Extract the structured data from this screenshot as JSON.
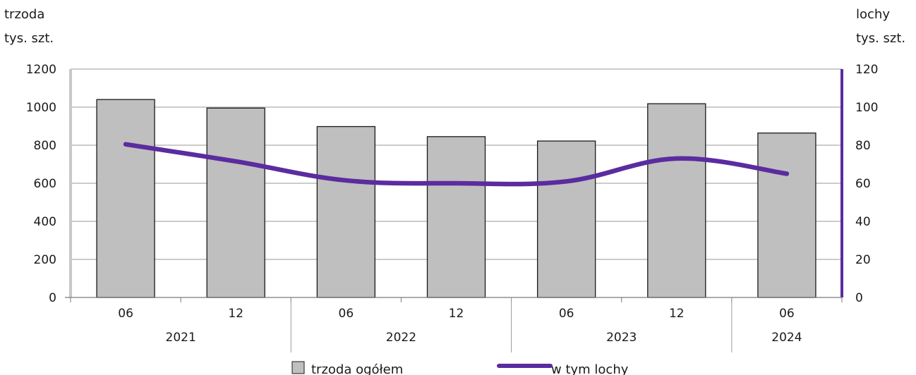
{
  "chart_data": {
    "type": "bar",
    "left_axis_label": [
      "trzoda",
      "tys. szt."
    ],
    "right_axis_label": [
      "lochy",
      "tys. szt."
    ],
    "categories": [
      "06",
      "12",
      "06",
      "12",
      "06",
      "12",
      "06"
    ],
    "years": [
      {
        "label": "2021",
        "span": 2
      },
      {
        "label": "2022",
        "span": 2
      },
      {
        "label": "2023",
        "span": 2
      },
      {
        "label": "2024",
        "span": 1
      }
    ],
    "left_ylim": [
      0,
      1200
    ],
    "left_ticks": [
      0,
      200,
      400,
      600,
      800,
      1000,
      1200
    ],
    "right_ylim": [
      0,
      120
    ],
    "right_ticks": [
      0,
      20,
      40,
      60,
      80,
      100,
      120
    ],
    "series": [
      {
        "name": "trzoda ogółem",
        "kind": "bar",
        "axis": "left",
        "color": "#bfbfbf",
        "values": [
          1040,
          995,
          898,
          845,
          822,
          1018,
          864
        ]
      },
      {
        "name": "w tym lochy",
        "kind": "line",
        "axis": "right",
        "color": "#5b2c9f",
        "values": [
          80.5,
          71.5,
          61.5,
          60,
          61,
          73,
          65
        ]
      }
    ],
    "legend_position": "bottom",
    "grid": "horizontal"
  }
}
